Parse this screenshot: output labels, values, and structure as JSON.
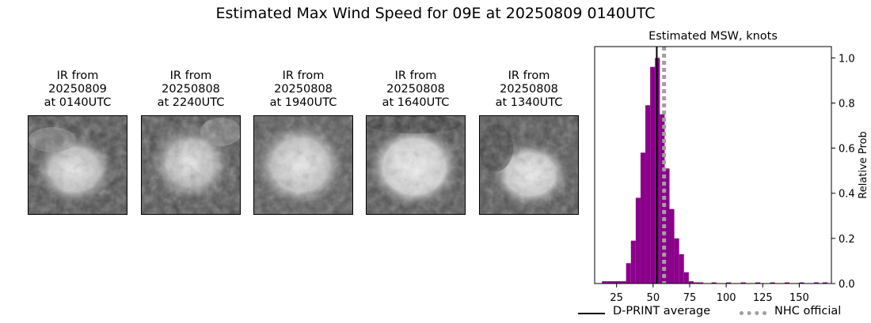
{
  "suptitle": "Estimated Max Wind Speed for 09E at 20250809 0140UTC",
  "panels": [
    {
      "line1": "IR from",
      "line2": "20250809",
      "line3": "at 0140UTC"
    },
    {
      "line1": "IR from",
      "line2": "20250808",
      "line3": "at 2240UTC"
    },
    {
      "line1": "IR from",
      "line2": "20250808",
      "line3": "at 1940UTC"
    },
    {
      "line1": "IR from",
      "line2": "20250808",
      "line3": "at 1640UTC"
    },
    {
      "line1": "IR from",
      "line2": "20250808",
      "line3": "at 1340UTC"
    }
  ],
  "chart_data": {
    "type": "bar",
    "title": "Estimated MSW, knots",
    "xlabel": "",
    "ylabel": "Relative Prob",
    "xlim": [
      10,
      172
    ],
    "ylim": [
      0,
      1.05
    ],
    "xticks": [
      25,
      50,
      75,
      100,
      125,
      150
    ],
    "yticks": [
      0.0,
      0.2,
      0.4,
      0.6,
      0.8,
      1.0
    ],
    "bin_width": 3.3,
    "bins": [
      {
        "x": 15,
        "value": 0.01
      },
      {
        "x": 18.3,
        "value": 0.01
      },
      {
        "x": 21.6,
        "value": 0.01
      },
      {
        "x": 24.9,
        "value": 0.01
      },
      {
        "x": 28.2,
        "value": 0.01
      },
      {
        "x": 31.5,
        "value": 0.09
      },
      {
        "x": 34.8,
        "value": 0.19
      },
      {
        "x": 38.1,
        "value": 0.38
      },
      {
        "x": 41.4,
        "value": 0.58
      },
      {
        "x": 44.7,
        "value": 0.79
      },
      {
        "x": 48.0,
        "value": 0.96
      },
      {
        "x": 51.3,
        "value": 1.0
      },
      {
        "x": 54.6,
        "value": 0.75
      },
      {
        "x": 57.9,
        "value": 0.51
      },
      {
        "x": 61.2,
        "value": 0.33
      },
      {
        "x": 64.5,
        "value": 0.2
      },
      {
        "x": 67.8,
        "value": 0.13
      },
      {
        "x": 71.1,
        "value": 0.05
      },
      {
        "x": 74.4,
        "value": 0.01
      },
      {
        "x": 77.7,
        "value": 0.005
      },
      {
        "x": 81.0,
        "value": 0.005
      },
      {
        "x": 90.0,
        "value": 0.005
      },
      {
        "x": 100.0,
        "value": 0.005
      },
      {
        "x": 110.0,
        "value": 0.005
      },
      {
        "x": 120.0,
        "value": 0.005
      },
      {
        "x": 130.0,
        "value": 0.005
      },
      {
        "x": 140.0,
        "value": 0.005
      },
      {
        "x": 150.0,
        "value": 0.005
      },
      {
        "x": 160.0,
        "value": 0.005
      },
      {
        "x": 166.0,
        "value": 0.005
      }
    ],
    "vlines": [
      {
        "name": "D-PRINT average",
        "x": 52.5,
        "color": "#000000",
        "style": "solid"
      },
      {
        "name": "NHC official",
        "x": 57.5,
        "color": "#a0a0a0",
        "style": "dotted"
      }
    ],
    "bar_color": "#8b008b"
  },
  "legend": {
    "dprint_label": "D-PRINT average",
    "nhc_label": "NHC official"
  }
}
